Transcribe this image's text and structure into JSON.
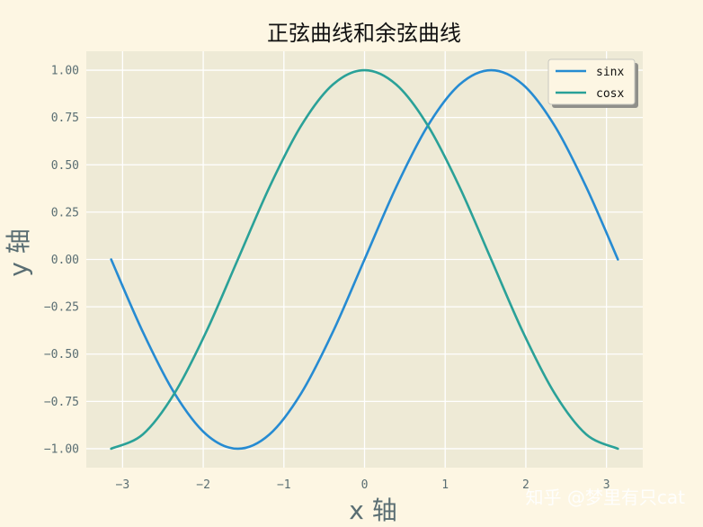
{
  "chart_data": {
    "type": "line",
    "title": "正弦曲线和余弦曲线",
    "xlabel": "x 轴",
    "ylabel": "y 轴",
    "xlim": [
      -3.45,
      3.45
    ],
    "ylim": [
      -1.1,
      1.1
    ],
    "xticks": [
      -3,
      -2,
      -1,
      0,
      1,
      2,
      3
    ],
    "xtick_labels": [
      "−3",
      "−2",
      "−1",
      "0",
      "1",
      "2",
      "3"
    ],
    "yticks": [
      1.0,
      0.75,
      0.5,
      0.25,
      0.0,
      -0.25,
      -0.5,
      -0.75,
      -1.0
    ],
    "ytick_labels": [
      "1.00",
      "0.75",
      "0.50",
      "0.25",
      "0.00",
      "−0.25",
      "−0.50",
      "−0.75",
      "−1.00"
    ],
    "grid": true,
    "legend_position": "top-right",
    "x": [
      -3.1416,
      -2.7489,
      -2.3562,
      -1.9635,
      -1.5708,
      -1.1781,
      -0.7854,
      -0.3927,
      0.0,
      0.3927,
      0.7854,
      1.1781,
      1.5708,
      1.9635,
      2.3562,
      2.7489,
      3.1416
    ],
    "series": [
      {
        "name": "sinx",
        "color": "#268bd2",
        "values": [
          0.0,
          -0.383,
          -0.707,
          -0.924,
          -1.0,
          -0.924,
          -0.707,
          -0.383,
          0.0,
          0.383,
          0.707,
          0.924,
          1.0,
          0.924,
          0.707,
          0.383,
          0.0
        ]
      },
      {
        "name": "cosx",
        "color": "#2aa198",
        "values": [
          -1.0,
          -0.924,
          -0.707,
          -0.383,
          0.0,
          0.383,
          0.707,
          0.924,
          1.0,
          0.924,
          0.707,
          0.383,
          0.0,
          -0.383,
          -0.707,
          -0.924,
          -1.0
        ]
      }
    ]
  },
  "watermark": "知乎 @梦里有只cat",
  "colors": {
    "figure_background": "#fdf6e3",
    "plot_background": "#eeead6",
    "grid": "#ffffff",
    "tick_text": "#5a6e73"
  }
}
